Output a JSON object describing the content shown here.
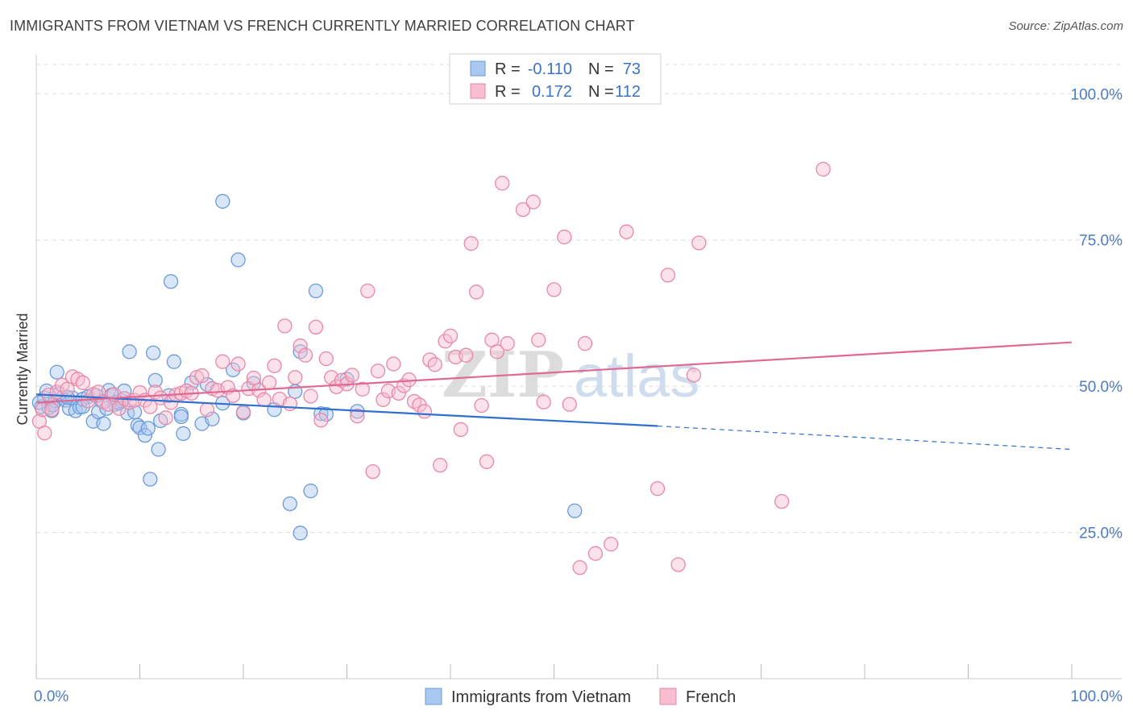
{
  "title": "IMMIGRANTS FROM VIETNAM VS FRENCH CURRENTLY MARRIED CORRELATION CHART",
  "source": "Source: ZipAtlas.com",
  "watermark": {
    "zip": "ZIP",
    "atlas": "atlas"
  },
  "legend": {
    "rows": [
      {
        "r_label": "R =",
        "r_value": "-0.110",
        "n_label": "N =",
        "n_value": "73",
        "color": "#a9c8f0",
        "edge": "#6b9ad8"
      },
      {
        "r_label": "R =",
        "r_value": "0.172",
        "n_label": "N =",
        "n_value": "112",
        "color": "#f7bed0",
        "edge": "#e987a6"
      }
    ]
  },
  "chart_data": {
    "type": "scatter",
    "title": "IMMIGRANTS FROM VIETNAM VS FRENCH CURRENTLY MARRIED CORRELATION CHART",
    "xlabel": "",
    "ylabel": "Currently Married",
    "xlim": [
      0,
      100
    ],
    "ylim": [
      0,
      105
    ],
    "x_tick_labels": [
      "0.0%",
      "100.0%"
    ],
    "y_ticks": [
      25,
      50,
      75,
      100
    ],
    "y_tick_labels": [
      "25.0%",
      "50.0%",
      "75.0%",
      "100.0%"
    ],
    "grid": true,
    "legend_position": "top-center",
    "series": [
      {
        "name": "Immigrants from Vietnam",
        "color": "#6b9ad8",
        "fill": "#a9c8f0",
        "line_color": "#2e6fd1",
        "trend": {
          "x0": 0,
          "y0": 48.6,
          "x1": 60,
          "y1": 43.2,
          "dash_to_x": 100,
          "dash_to_y": 39.2
        },
        "points": [
          [
            0.5,
            46.5
          ],
          [
            0.8,
            48.0
          ],
          [
            1.0,
            49.2
          ],
          [
            1.2,
            46.3
          ],
          [
            1.5,
            45.8
          ],
          [
            1.8,
            47.5
          ],
          [
            2.0,
            52.4
          ],
          [
            2.5,
            48.0
          ],
          [
            2.8,
            47.6
          ],
          [
            3.2,
            46.2
          ],
          [
            3.5,
            48.0
          ],
          [
            3.8,
            45.8
          ],
          [
            4.2,
            46.4
          ],
          [
            4.5,
            47.8
          ],
          [
            5.0,
            48.2
          ],
          [
            5.5,
            44.0
          ],
          [
            6.0,
            45.6
          ],
          [
            6.3,
            47.5
          ],
          [
            6.5,
            43.6
          ],
          [
            7.0,
            49.3
          ],
          [
            7.3,
            48.5
          ],
          [
            7.6,
            46.9
          ],
          [
            8.0,
            47.1
          ],
          [
            8.3,
            47.5
          ],
          [
            8.5,
            49.2
          ],
          [
            8.8,
            45.4
          ],
          [
            9.0,
            55.9
          ],
          [
            9.5,
            45.6
          ],
          [
            9.8,
            43.3
          ],
          [
            10.0,
            42.9
          ],
          [
            10.5,
            41.6
          ],
          [
            10.8,
            42.8
          ],
          [
            11.0,
            34.1
          ],
          [
            11.3,
            55.7
          ],
          [
            11.5,
            51.0
          ],
          [
            11.8,
            39.2
          ],
          [
            12.0,
            44.1
          ],
          [
            12.8,
            48.4
          ],
          [
            13.0,
            67.9
          ],
          [
            13.3,
            54.2
          ],
          [
            14.0,
            45.2
          ],
          [
            14.2,
            41.9
          ],
          [
            14.0,
            44.8
          ],
          [
            15.0,
            50.6
          ],
          [
            16.0,
            43.6
          ],
          [
            16.5,
            50.3
          ],
          [
            17.0,
            44.4
          ],
          [
            18.0,
            81.6
          ],
          [
            18.0,
            47.1
          ],
          [
            19.0,
            52.8
          ],
          [
            19.5,
            71.6
          ],
          [
            20.0,
            45.4
          ],
          [
            21.0,
            50.5
          ],
          [
            23.0,
            46.0
          ],
          [
            24.5,
            29.9
          ],
          [
            25.0,
            49.1
          ],
          [
            25.5,
            55.9
          ],
          [
            25.5,
            24.9
          ],
          [
            26.5,
            32.1
          ],
          [
            27.0,
            66.3
          ],
          [
            27.5,
            45.3
          ],
          [
            28.0,
            45.2
          ],
          [
            30.0,
            51.2
          ],
          [
            31.0,
            45.7
          ],
          [
            52.0,
            28.7
          ],
          [
            4.5,
            46.5
          ],
          [
            5.8,
            48.4
          ],
          [
            2.2,
            48.7
          ],
          [
            1.6,
            46.8
          ],
          [
            3.0,
            48.1
          ],
          [
            7.8,
            47.3
          ],
          [
            6.8,
            46.2
          ],
          [
            0.3,
            47.2
          ]
        ]
      },
      {
        "name": "French",
        "color": "#e987a6",
        "fill": "#f7bed0",
        "line_color": "#e06891",
        "trend": {
          "x0": 0,
          "y0": 47.2,
          "x1": 100,
          "y1": 57.5
        },
        "points": [
          [
            0.3,
            44.0
          ],
          [
            0.6,
            46.0
          ],
          [
            0.8,
            42.0
          ],
          [
            1.2,
            48.5
          ],
          [
            1.5,
            46.0
          ],
          [
            2.0,
            49.0
          ],
          [
            2.5,
            50.2
          ],
          [
            3.0,
            49.5
          ],
          [
            3.5,
            51.6
          ],
          [
            4.0,
            51.2
          ],
          [
            4.5,
            50.6
          ],
          [
            5.0,
            47.5
          ],
          [
            5.5,
            48.6
          ],
          [
            6.0,
            49.0
          ],
          [
            6.5,
            47.3
          ],
          [
            7.0,
            46.9
          ],
          [
            7.5,
            48.6
          ],
          [
            8.0,
            46.2
          ],
          [
            8.5,
            47.9
          ],
          [
            9.0,
            47.2
          ],
          [
            9.5,
            47.6
          ],
          [
            10.0,
            48.9
          ],
          [
            10.5,
            47.6
          ],
          [
            11.0,
            46.5
          ],
          [
            11.5,
            49.0
          ],
          [
            12.0,
            48.0
          ],
          [
            12.5,
            44.6
          ],
          [
            13.0,
            47.2
          ],
          [
            13.5,
            48.5
          ],
          [
            14.0,
            48.8
          ],
          [
            14.5,
            49.2
          ],
          [
            15.0,
            48.8
          ],
          [
            15.5,
            51.5
          ],
          [
            16.0,
            51.8
          ],
          [
            16.5,
            46.0
          ],
          [
            17.0,
            49.6
          ],
          [
            17.5,
            49.3
          ],
          [
            18.0,
            54.2
          ],
          [
            18.5,
            49.8
          ],
          [
            19.0,
            48.4
          ],
          [
            19.5,
            53.8
          ],
          [
            20.0,
            45.6
          ],
          [
            20.5,
            49.6
          ],
          [
            21.0,
            51.4
          ],
          [
            21.5,
            49.3
          ],
          [
            22.0,
            47.7
          ],
          [
            22.5,
            50.6
          ],
          [
            23.0,
            53.5
          ],
          [
            23.5,
            47.8
          ],
          [
            24.0,
            60.3
          ],
          [
            24.5,
            47.0
          ],
          [
            25.0,
            51.5
          ],
          [
            25.5,
            56.9
          ],
          [
            26.0,
            55.3
          ],
          [
            26.5,
            48.3
          ],
          [
            27.0,
            60.1
          ],
          [
            27.5,
            44.2
          ],
          [
            28.0,
            54.7
          ],
          [
            28.5,
            51.5
          ],
          [
            29.0,
            49.9
          ],
          [
            29.5,
            51.0
          ],
          [
            30.0,
            50.4
          ],
          [
            30.5,
            51.9
          ],
          [
            31.0,
            44.9
          ],
          [
            31.5,
            49.5
          ],
          [
            32.0,
            66.3
          ],
          [
            32.5,
            35.4
          ],
          [
            33.0,
            52.6
          ],
          [
            33.5,
            47.7
          ],
          [
            34.0,
            49.2
          ],
          [
            34.5,
            53.8
          ],
          [
            35.0,
            48.8
          ],
          [
            35.5,
            50.1
          ],
          [
            36.0,
            51.1
          ],
          [
            36.5,
            47.4
          ],
          [
            37.0,
            46.8
          ],
          [
            37.5,
            45.7
          ],
          [
            38.0,
            54.5
          ],
          [
            38.5,
            53.7
          ],
          [
            39.0,
            36.5
          ],
          [
            39.5,
            57.7
          ],
          [
            40.0,
            58.6
          ],
          [
            40.5,
            55.0
          ],
          [
            41.0,
            42.6
          ],
          [
            41.5,
            55.3
          ],
          [
            42.0,
            74.4
          ],
          [
            42.5,
            66.1
          ],
          [
            43.0,
            46.7
          ],
          [
            43.5,
            37.1
          ],
          [
            44.0,
            57.9
          ],
          [
            44.5,
            55.9
          ],
          [
            45.0,
            84.7
          ],
          [
            45.5,
            57.3
          ],
          [
            47.0,
            80.2
          ],
          [
            48.0,
            81.5
          ],
          [
            48.5,
            57.9
          ],
          [
            49.0,
            47.3
          ],
          [
            50.0,
            66.5
          ],
          [
            51.0,
            75.5
          ],
          [
            51.5,
            46.9
          ],
          [
            52.5,
            19.0
          ],
          [
            53.0,
            57.3
          ],
          [
            54.0,
            21.4
          ],
          [
            55.5,
            23.0
          ],
          [
            57.0,
            76.4
          ],
          [
            60.0,
            32.5
          ],
          [
            61.0,
            69.0
          ],
          [
            62.0,
            19.5
          ],
          [
            63.5,
            51.9
          ],
          [
            64.0,
            74.5
          ],
          [
            72.0,
            30.3
          ],
          [
            76.0,
            87.1
          ]
        ]
      }
    ]
  },
  "bottom_legend": [
    {
      "label": "Immigrants from Vietnam",
      "color": "#a9c8f0",
      "edge": "#6b9ad8"
    },
    {
      "label": "French",
      "color": "#f7bed0",
      "edge": "#e987a6"
    }
  ]
}
